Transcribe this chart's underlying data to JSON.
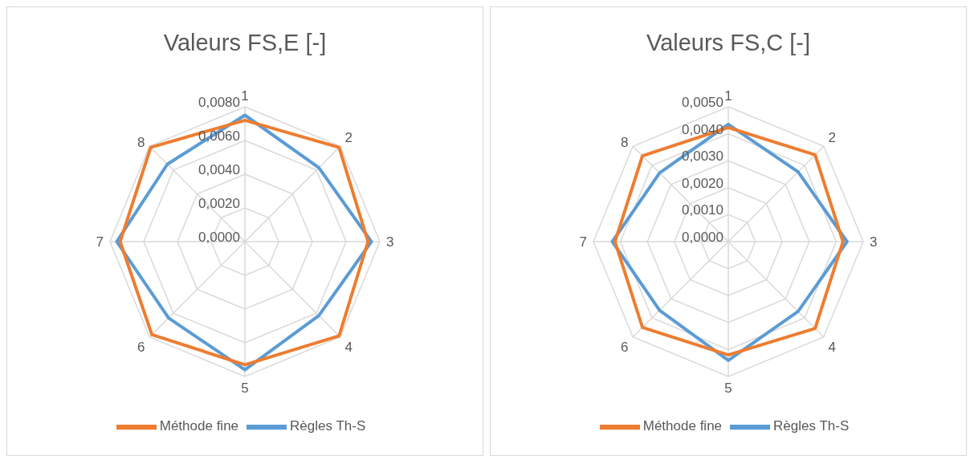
{
  "chart_data": [
    {
      "type": "radar",
      "title": "Valeurs FS,E [-]",
      "categories": [
        "1",
        "2",
        "3",
        "4",
        "5",
        "6",
        "7",
        "8"
      ],
      "ylim": [
        0,
        0.008
      ],
      "yticks": [
        {
          "value": 0,
          "label": "0,0000"
        },
        {
          "value": 0.002,
          "label": "0,0020"
        },
        {
          "value": 0.004,
          "label": "0,0040"
        },
        {
          "value": 0.006,
          "label": "0,0060"
        },
        {
          "value": 0.008,
          "label": "0,0080"
        }
      ],
      "grid": true,
      "legend": "bottom",
      "series": [
        {
          "name": "Règles Th-S",
          "color": "#5b9bd5",
          "values": [
            0.0075,
            0.0062,
            0.0075,
            0.0062,
            0.0076,
            0.0064,
            0.0076,
            0.0065
          ]
        },
        {
          "name": "Méthode fine",
          "color": "#ed7d31",
          "values": [
            0.0072,
            0.0079,
            0.0073,
            0.0079,
            0.0073,
            0.0078,
            0.0074,
            0.0079
          ]
        }
      ]
    },
    {
      "type": "radar",
      "title": "Valeurs FS,C [-]",
      "categories": [
        "1",
        "2",
        "3",
        "4",
        "5",
        "6",
        "7",
        "8"
      ],
      "ylim": [
        0,
        0.005
      ],
      "yticks": [
        {
          "value": 0,
          "label": "0,0000"
        },
        {
          "value": 0.001,
          "label": "0,0010"
        },
        {
          "value": 0.002,
          "label": "0,0020"
        },
        {
          "value": 0.003,
          "label": "0,0030"
        },
        {
          "value": 0.004,
          "label": "0,0040"
        },
        {
          "value": 0.005,
          "label": "0,0050"
        }
      ],
      "grid": true,
      "legend": "bottom",
      "series": [
        {
          "name": "Règles Th-S",
          "color": "#5b9bd5",
          "values": [
            0.00435,
            0.00366,
            0.0044,
            0.00366,
            0.0044,
            0.0036,
            0.0043,
            0.0036
          ]
        },
        {
          "name": "Méthode fine",
          "color": "#ed7d31",
          "values": [
            0.00423,
            0.00455,
            0.00425,
            0.00455,
            0.0042,
            0.0045,
            0.0042,
            0.0045
          ]
        }
      ]
    }
  ]
}
